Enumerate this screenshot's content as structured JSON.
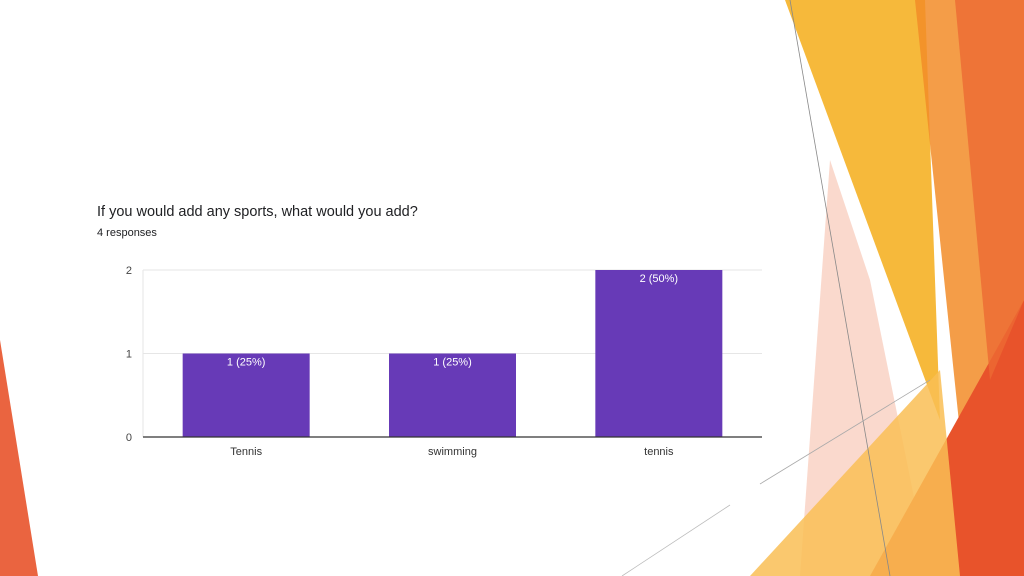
{
  "question": {
    "title": "If you would add any sports, what would you add?",
    "responses": "4 responses"
  },
  "colors": {
    "bar": "#673AB7",
    "accent_orange": "#F28C28",
    "accent_red": "#E8532B",
    "accent_yellow": "#F6B93B"
  },
  "chart_data": {
    "type": "bar",
    "categories": [
      "Tennis",
      "swimming",
      "tennis"
    ],
    "values": [
      1,
      1,
      2
    ],
    "data_labels": [
      "1 (25%)",
      "1 (25%)",
      "2 (50%)"
    ],
    "ylim": [
      0,
      2
    ],
    "yticks": [
      0,
      1,
      2
    ],
    "grid": true
  }
}
